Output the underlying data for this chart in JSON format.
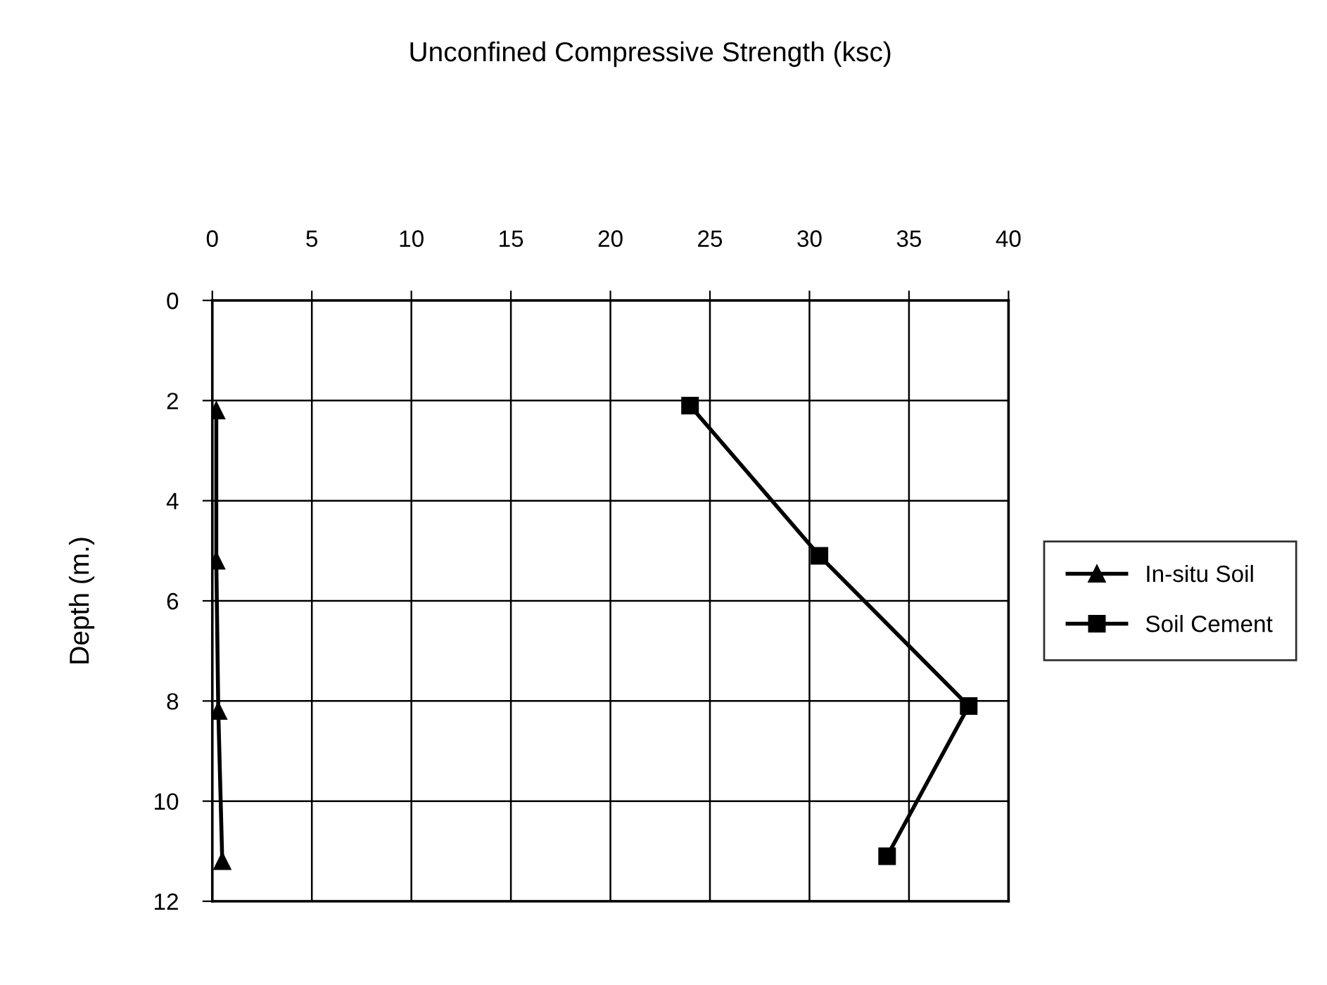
{
  "chart_data": {
    "type": "line",
    "title": "Unconfined Compressive Strength (ksc)",
    "ylabel": "Depth (m.)",
    "series": [
      {
        "name": "In-situ Soil",
        "color": "#000000",
        "marker": "triangle",
        "x": [
          0.2,
          0.2,
          0.3,
          0.5
        ],
        "values": [
          2.2,
          5.2,
          8.2,
          11.2
        ]
      },
      {
        "name": "Soil Cement",
        "color": "#000000",
        "marker": "square",
        "x": [
          24.0,
          30.5,
          38.0,
          33.9
        ],
        "values": [
          2.1,
          5.1,
          8.1,
          11.1
        ]
      }
    ],
    "xlim": [
      0,
      40
    ],
    "xticks": [
      0,
      5,
      10,
      15,
      20,
      25,
      30,
      35,
      40
    ],
    "ylim": [
      12,
      0
    ],
    "yticks": [
      0,
      2,
      4,
      6,
      8,
      10,
      12
    ],
    "grid": true,
    "legend": "right",
    "line_style": "solid"
  }
}
